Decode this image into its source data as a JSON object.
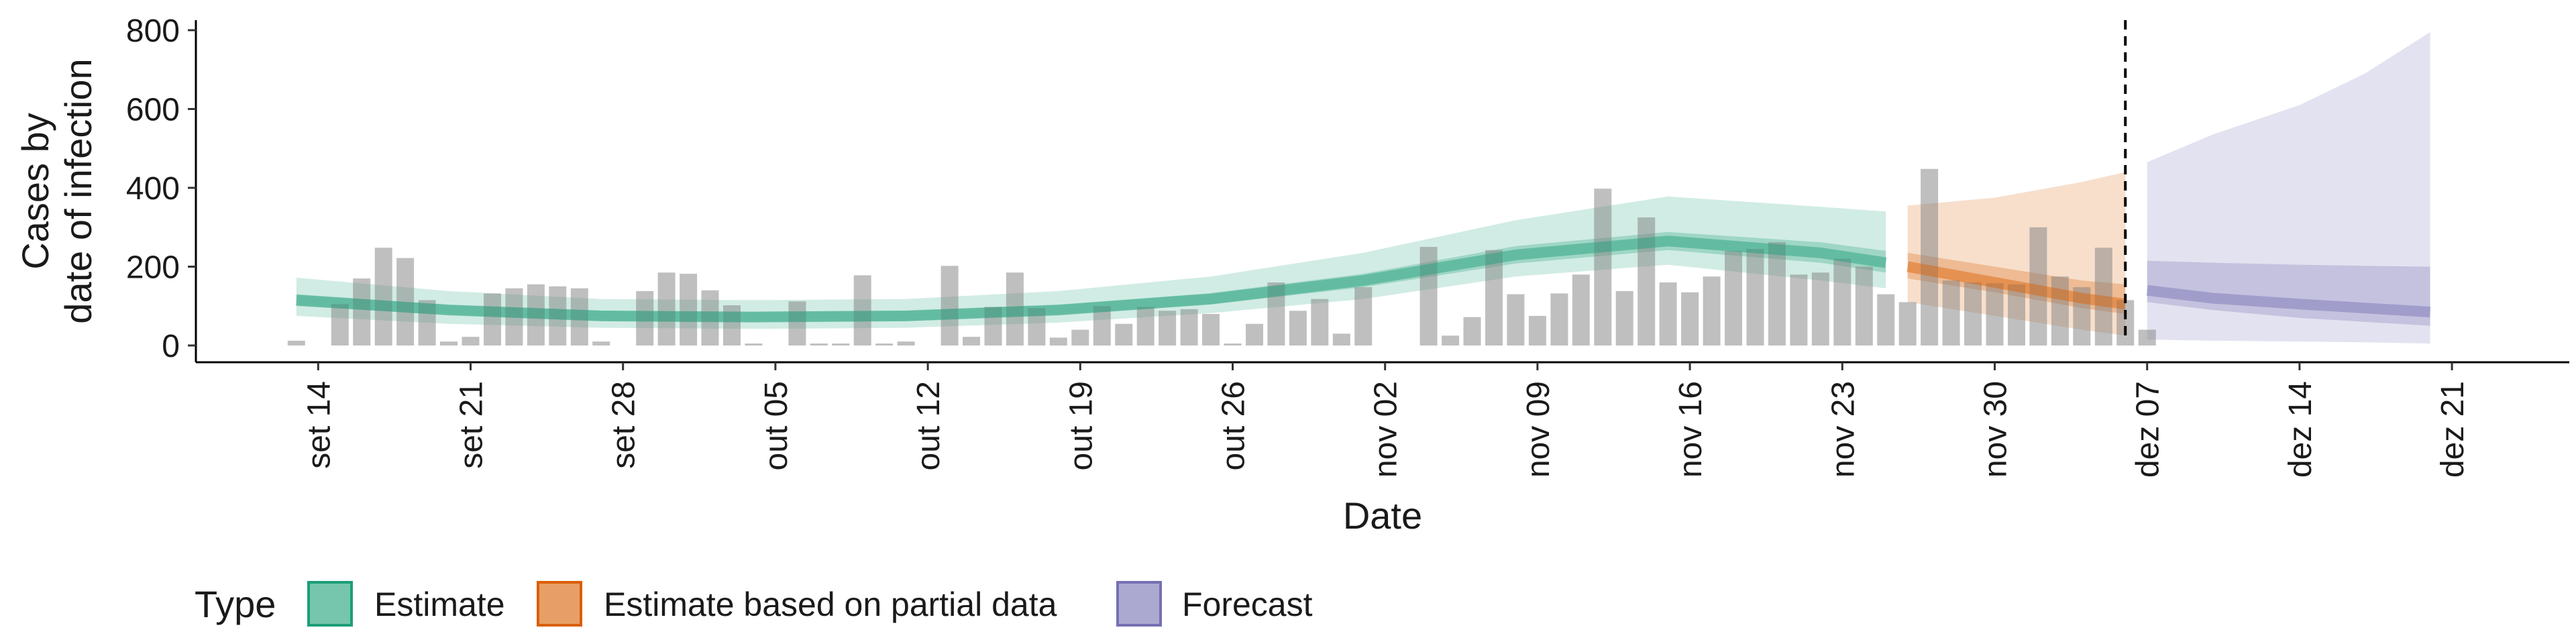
{
  "chart_data": {
    "type": "bar",
    "xlabel": "Date",
    "ylabel_lines": [
      "Cases by",
      "date of infection"
    ],
    "ylim": [
      0,
      820
    ],
    "yticks": [
      0,
      200,
      400,
      600,
      800
    ],
    "xlim": [
      "2020-09-09",
      "2020-12-23"
    ],
    "xticks": [
      {
        "date": "2020-09-14",
        "label": "set 14"
      },
      {
        "date": "2020-09-21",
        "label": "set 21"
      },
      {
        "date": "2020-09-28",
        "label": "set 28"
      },
      {
        "date": "2020-10-05",
        "label": "out 05"
      },
      {
        "date": "2020-10-12",
        "label": "out 12"
      },
      {
        "date": "2020-10-19",
        "label": "out 19"
      },
      {
        "date": "2020-10-26",
        "label": "out 26"
      },
      {
        "date": "2020-11-02",
        "label": "nov 02"
      },
      {
        "date": "2020-11-09",
        "label": "nov 09"
      },
      {
        "date": "2020-11-16",
        "label": "nov 16"
      },
      {
        "date": "2020-11-23",
        "label": "nov 23"
      },
      {
        "date": "2020-11-30",
        "label": "nov 30"
      },
      {
        "date": "2020-12-07",
        "label": "dez 07"
      },
      {
        "date": "2020-12-14",
        "label": "dez 14"
      },
      {
        "date": "2020-12-21",
        "label": "dez 21"
      }
    ],
    "reported_cases": {
      "start_date": "2020-09-13",
      "values": [
        12,
        0,
        105,
        170,
        248,
        222,
        115,
        10,
        22,
        132,
        145,
        155,
        150,
        145,
        10,
        0,
        138,
        185,
        182,
        140,
        102,
        5,
        0,
        112,
        5,
        5,
        178,
        5,
        10,
        0,
        202,
        22,
        98,
        185,
        95,
        20,
        40,
        100,
        55,
        98,
        88,
        92,
        80,
        5,
        55,
        160,
        88,
        118,
        30,
        148,
        0,
        0,
        250,
        25,
        72,
        242,
        130,
        75,
        132,
        180,
        398,
        138,
        325,
        160,
        135,
        175,
        240,
        245,
        262,
        180,
        185,
        220,
        200,
        130,
        110,
        448,
        165,
        160,
        158,
        155,
        300,
        175,
        148,
        248,
        115,
        40
      ]
    },
    "series": [
      {
        "name": "Estimate",
        "color": "#1b9e77",
        "dates": [
          "2020-09-13",
          "2020-09-20",
          "2020-09-27",
          "2020-10-04",
          "2020-10-11",
          "2020-10-18",
          "2020-10-25",
          "2020-11-01",
          "2020-11-08",
          "2020-11-15",
          "2020-11-22",
          "2020-11-25"
        ],
        "median": [
          115,
          90,
          75,
          72,
          75,
          90,
          118,
          165,
          230,
          265,
          235,
          210
        ],
        "lower50": [
          100,
          78,
          62,
          60,
          62,
          78,
          104,
          148,
          208,
          242,
          210,
          185
        ],
        "upper50": [
          130,
          103,
          88,
          86,
          88,
          103,
          133,
          182,
          252,
          288,
          262,
          240
        ],
        "lower90": [
          75,
          55,
          45,
          42,
          45,
          58,
          82,
          118,
          175,
          205,
          165,
          145
        ],
        "upper90": [
          172,
          138,
          118,
          115,
          118,
          138,
          175,
          235,
          318,
          378,
          352,
          340
        ]
      },
      {
        "name": "Estimate based on partial data",
        "color": "#d95f02",
        "dates": [
          "2020-11-26",
          "2020-11-30",
          "2020-12-04",
          "2020-12-06"
        ],
        "median": [
          200,
          160,
          120,
          105
        ],
        "lower50": [
          170,
          135,
          95,
          80
        ],
        "upper50": [
          235,
          200,
          165,
          155
        ],
        "lower90": [
          110,
          75,
          40,
          25
        ],
        "upper90": [
          355,
          375,
          415,
          440
        ]
      },
      {
        "name": "Forecast",
        "color": "#7570b3",
        "dates": [
          "2020-12-07",
          "2020-12-10",
          "2020-12-14",
          "2020-12-17",
          "2020-12-20"
        ],
        "median": [
          140,
          120,
          105,
          95,
          85
        ],
        "lower50": [
          110,
          90,
          70,
          60,
          50
        ],
        "upper50": [
          215,
          210,
          205,
          202,
          200
        ],
        "lower90": [
          15,
          12,
          10,
          8,
          5
        ],
        "upper90": [
          465,
          535,
          610,
          690,
          795
        ]
      }
    ],
    "vline_date": "2020-12-06",
    "legend": {
      "title": "Type",
      "position": "bottom",
      "items": [
        "Estimate",
        "Estimate based on partial data",
        "Forecast"
      ]
    }
  }
}
